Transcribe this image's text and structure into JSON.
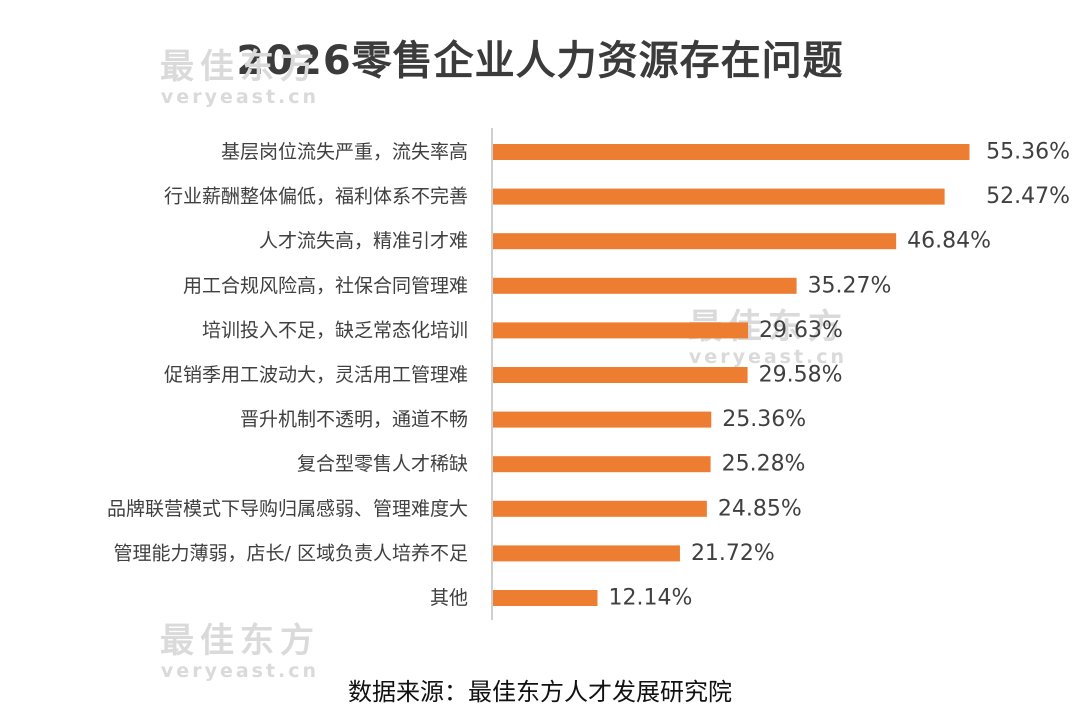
{
  "title": "2026零售企业人力资源存在问题",
  "source": "数据来源：最佳东方人才发展研究院",
  "watermark": {
    "cn": "最佳东方",
    "en": "veryeast.cn"
  },
  "chart_data": {
    "type": "bar",
    "orientation": "horizontal",
    "categories": [
      "基层岗位流失严重，流失率高",
      "行业薪酬整体偏低，福利体系不完善",
      "人才流失高，精准引才难",
      "用工合规风险高，社保合同管理难",
      "培训投入不足，缺乏常态化培训",
      "促销季用工波动大，灵活用工管理难",
      "晋升机制不透明，通道不畅",
      "复合型零售人才稀缺",
      "品牌联营模式下导购归属感弱、管理难度大",
      "管理能力薄弱，店长/ 区域负责人培养不足",
      "其他"
    ],
    "values": [
      55.36,
      52.47,
      46.84,
      35.27,
      29.63,
      29.58,
      25.36,
      25.28,
      24.85,
      21.72,
      12.14
    ],
    "value_labels": [
      "55.36%",
      "52.47%",
      "46.84%",
      "35.27%",
      "29.63%",
      "29.58%",
      "25.36%",
      "25.28%",
      "24.85%",
      "21.72%",
      "12.14%"
    ],
    "bar_color": "#ED7D31",
    "xlim": [
      0,
      56
    ],
    "grid": false
  }
}
